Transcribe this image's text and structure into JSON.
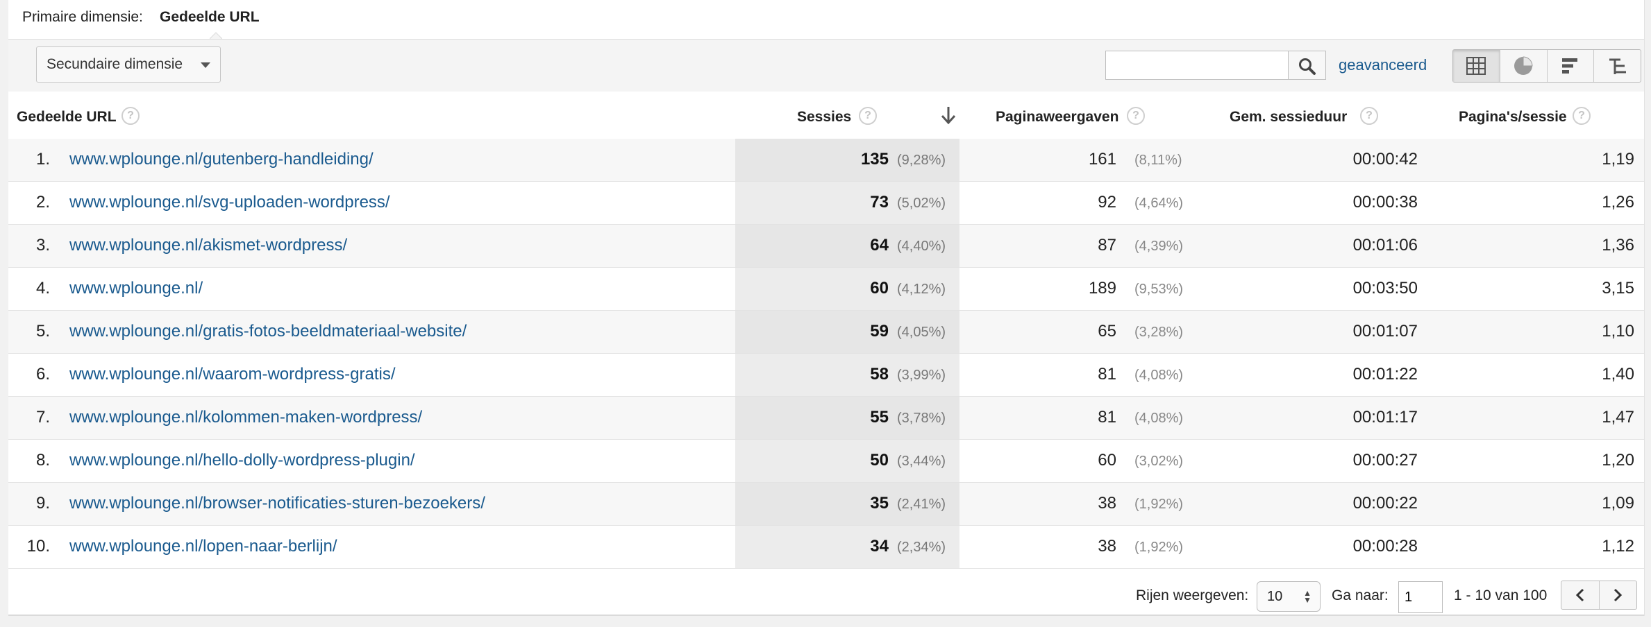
{
  "primary": {
    "label": "Primaire dimensie:",
    "value": "Gedeelde URL"
  },
  "toolbar": {
    "secondary_dimension": "Secundaire dimensie",
    "search_placeholder": "",
    "advanced": "geavanceerd",
    "views": [
      "table-view-icon",
      "pie-view-icon",
      "bar-view-icon",
      "pivot-view-icon"
    ]
  },
  "headers": {
    "url": "Gedeelde URL",
    "sessions": "Sessies",
    "pageviews": "Paginaweergaven",
    "avg_duration": "Gem. sessieduur",
    "pages_per_session": "Pagina's/sessie",
    "help": "?"
  },
  "rows": [
    {
      "idx": "1.",
      "url": "www.wplounge.nl/gutenberg-handleiding/",
      "sessions": "135",
      "sessions_pct": "(9,28%)",
      "pageviews": "161",
      "pageviews_pct": "(8,11%)",
      "duration": "00:00:42",
      "pps": "1,19"
    },
    {
      "idx": "2.",
      "url": "www.wplounge.nl/svg-uploaden-wordpress/",
      "sessions": "73",
      "sessions_pct": "(5,02%)",
      "pageviews": "92",
      "pageviews_pct": "(4,64%)",
      "duration": "00:00:38",
      "pps": "1,26"
    },
    {
      "idx": "3.",
      "url": "www.wplounge.nl/akismet-wordpress/",
      "sessions": "64",
      "sessions_pct": "(4,40%)",
      "pageviews": "87",
      "pageviews_pct": "(4,39%)",
      "duration": "00:01:06",
      "pps": "1,36"
    },
    {
      "idx": "4.",
      "url": "www.wplounge.nl/",
      "sessions": "60",
      "sessions_pct": "(4,12%)",
      "pageviews": "189",
      "pageviews_pct": "(9,53%)",
      "duration": "00:03:50",
      "pps": "3,15"
    },
    {
      "idx": "5.",
      "url": "www.wplounge.nl/gratis-fotos-beeldmateriaal-website/",
      "sessions": "59",
      "sessions_pct": "(4,05%)",
      "pageviews": "65",
      "pageviews_pct": "(3,28%)",
      "duration": "00:01:07",
      "pps": "1,10"
    },
    {
      "idx": "6.",
      "url": "www.wplounge.nl/waarom-wordpress-gratis/",
      "sessions": "58",
      "sessions_pct": "(3,99%)",
      "pageviews": "81",
      "pageviews_pct": "(4,08%)",
      "duration": "00:01:22",
      "pps": "1,40"
    },
    {
      "idx": "7.",
      "url": "www.wplounge.nl/kolommen-maken-wordpress/",
      "sessions": "55",
      "sessions_pct": "(3,78%)",
      "pageviews": "81",
      "pageviews_pct": "(4,08%)",
      "duration": "00:01:17",
      "pps": "1,47"
    },
    {
      "idx": "8.",
      "url": "www.wplounge.nl/hello-dolly-wordpress-plugin/",
      "sessions": "50",
      "sessions_pct": "(3,44%)",
      "pageviews": "60",
      "pageviews_pct": "(3,02%)",
      "duration": "00:00:27",
      "pps": "1,20"
    },
    {
      "idx": "9.",
      "url": "www.wplounge.nl/browser-notificaties-sturen-bezoekers/",
      "sessions": "35",
      "sessions_pct": "(2,41%)",
      "pageviews": "38",
      "pageviews_pct": "(1,92%)",
      "duration": "00:00:22",
      "pps": "1,09"
    },
    {
      "idx": "10.",
      "url": "www.wplounge.nl/lopen-naar-berlijn/",
      "sessions": "34",
      "sessions_pct": "(2,34%)",
      "pageviews": "38",
      "pageviews_pct": "(1,92%)",
      "duration": "00:00:28",
      "pps": "1,12"
    }
  ],
  "footer": {
    "rows_label": "Rijen weergeven:",
    "rows_value": "10",
    "goto_label": "Ga naar:",
    "goto_value": "1",
    "range": "1 - 10 van 100"
  },
  "colors": {
    "link": "#1a5a8e",
    "sorted_column_bg": "#ececec",
    "toolbar_bg": "#f4f4f4"
  }
}
